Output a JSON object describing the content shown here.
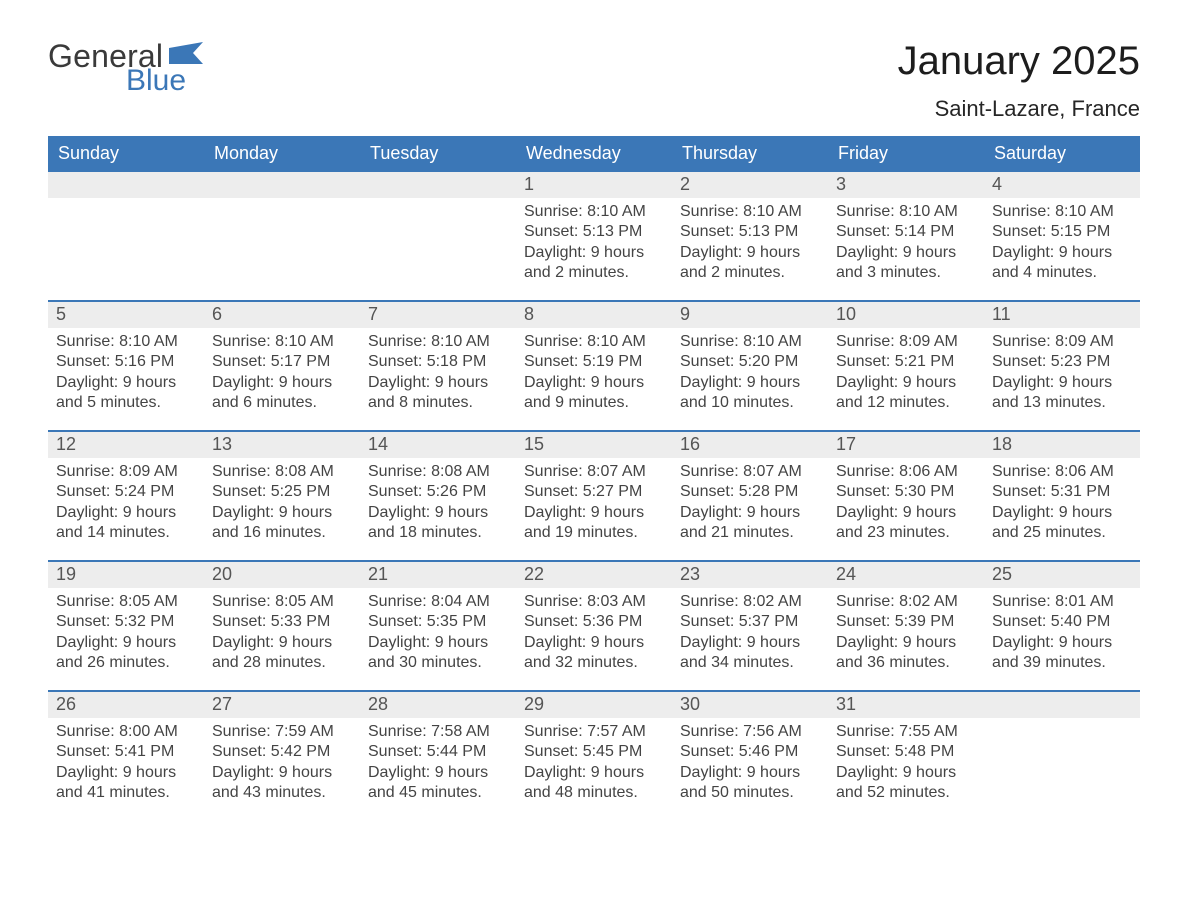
{
  "brand": {
    "part1": "General",
    "part2": "Blue",
    "flag_color": "#3b77b7"
  },
  "header": {
    "month_title": "January 2025",
    "location": "Saint-Lazare, France"
  },
  "colors": {
    "blue": "#3b77b7",
    "header_row_bg": "#ededed",
    "text": "#333333",
    "daynum": "#555555",
    "white": "#ffffff"
  },
  "calendar": {
    "days_of_week": [
      "Sunday",
      "Monday",
      "Tuesday",
      "Wednesday",
      "Thursday",
      "Friday",
      "Saturday"
    ],
    "weeks": [
      [
        {
          "blank": true
        },
        {
          "blank": true
        },
        {
          "blank": true
        },
        {
          "day": "1",
          "sunrise": "8:10 AM",
          "sunset": "5:13 PM",
          "daylight": "9 hours and 2 minutes."
        },
        {
          "day": "2",
          "sunrise": "8:10 AM",
          "sunset": "5:13 PM",
          "daylight": "9 hours and 2 minutes."
        },
        {
          "day": "3",
          "sunrise": "8:10 AM",
          "sunset": "5:14 PM",
          "daylight": "9 hours and 3 minutes."
        },
        {
          "day": "4",
          "sunrise": "8:10 AM",
          "sunset": "5:15 PM",
          "daylight": "9 hours and 4 minutes."
        }
      ],
      [
        {
          "day": "5",
          "sunrise": "8:10 AM",
          "sunset": "5:16 PM",
          "daylight": "9 hours and 5 minutes."
        },
        {
          "day": "6",
          "sunrise": "8:10 AM",
          "sunset": "5:17 PM",
          "daylight": "9 hours and 6 minutes."
        },
        {
          "day": "7",
          "sunrise": "8:10 AM",
          "sunset": "5:18 PM",
          "daylight": "9 hours and 8 minutes."
        },
        {
          "day": "8",
          "sunrise": "8:10 AM",
          "sunset": "5:19 PM",
          "daylight": "9 hours and 9 minutes."
        },
        {
          "day": "9",
          "sunrise": "8:10 AM",
          "sunset": "5:20 PM",
          "daylight": "9 hours and 10 minutes."
        },
        {
          "day": "10",
          "sunrise": "8:09 AM",
          "sunset": "5:21 PM",
          "daylight": "9 hours and 12 minutes."
        },
        {
          "day": "11",
          "sunrise": "8:09 AM",
          "sunset": "5:23 PM",
          "daylight": "9 hours and 13 minutes."
        }
      ],
      [
        {
          "day": "12",
          "sunrise": "8:09 AM",
          "sunset": "5:24 PM",
          "daylight": "9 hours and 14 minutes."
        },
        {
          "day": "13",
          "sunrise": "8:08 AM",
          "sunset": "5:25 PM",
          "daylight": "9 hours and 16 minutes."
        },
        {
          "day": "14",
          "sunrise": "8:08 AM",
          "sunset": "5:26 PM",
          "daylight": "9 hours and 18 minutes."
        },
        {
          "day": "15",
          "sunrise": "8:07 AM",
          "sunset": "5:27 PM",
          "daylight": "9 hours and 19 minutes."
        },
        {
          "day": "16",
          "sunrise": "8:07 AM",
          "sunset": "5:28 PM",
          "daylight": "9 hours and 21 minutes."
        },
        {
          "day": "17",
          "sunrise": "8:06 AM",
          "sunset": "5:30 PM",
          "daylight": "9 hours and 23 minutes."
        },
        {
          "day": "18",
          "sunrise": "8:06 AM",
          "sunset": "5:31 PM",
          "daylight": "9 hours and 25 minutes."
        }
      ],
      [
        {
          "day": "19",
          "sunrise": "8:05 AM",
          "sunset": "5:32 PM",
          "daylight": "9 hours and 26 minutes."
        },
        {
          "day": "20",
          "sunrise": "8:05 AM",
          "sunset": "5:33 PM",
          "daylight": "9 hours and 28 minutes."
        },
        {
          "day": "21",
          "sunrise": "8:04 AM",
          "sunset": "5:35 PM",
          "daylight": "9 hours and 30 minutes."
        },
        {
          "day": "22",
          "sunrise": "8:03 AM",
          "sunset": "5:36 PM",
          "daylight": "9 hours and 32 minutes."
        },
        {
          "day": "23",
          "sunrise": "8:02 AM",
          "sunset": "5:37 PM",
          "daylight": "9 hours and 34 minutes."
        },
        {
          "day": "24",
          "sunrise": "8:02 AM",
          "sunset": "5:39 PM",
          "daylight": "9 hours and 36 minutes."
        },
        {
          "day": "25",
          "sunrise": "8:01 AM",
          "sunset": "5:40 PM",
          "daylight": "9 hours and 39 minutes."
        }
      ],
      [
        {
          "day": "26",
          "sunrise": "8:00 AM",
          "sunset": "5:41 PM",
          "daylight": "9 hours and 41 minutes."
        },
        {
          "day": "27",
          "sunrise": "7:59 AM",
          "sunset": "5:42 PM",
          "daylight": "9 hours and 43 minutes."
        },
        {
          "day": "28",
          "sunrise": "7:58 AM",
          "sunset": "5:44 PM",
          "daylight": "9 hours and 45 minutes."
        },
        {
          "day": "29",
          "sunrise": "7:57 AM",
          "sunset": "5:45 PM",
          "daylight": "9 hours and 48 minutes."
        },
        {
          "day": "30",
          "sunrise": "7:56 AM",
          "sunset": "5:46 PM",
          "daylight": "9 hours and 50 minutes."
        },
        {
          "day": "31",
          "sunrise": "7:55 AM",
          "sunset": "5:48 PM",
          "daylight": "9 hours and 52 minutes."
        },
        {
          "blank": true
        }
      ]
    ],
    "labels": {
      "sunrise": "Sunrise: ",
      "sunset": "Sunset: ",
      "daylight": "Daylight: "
    }
  }
}
